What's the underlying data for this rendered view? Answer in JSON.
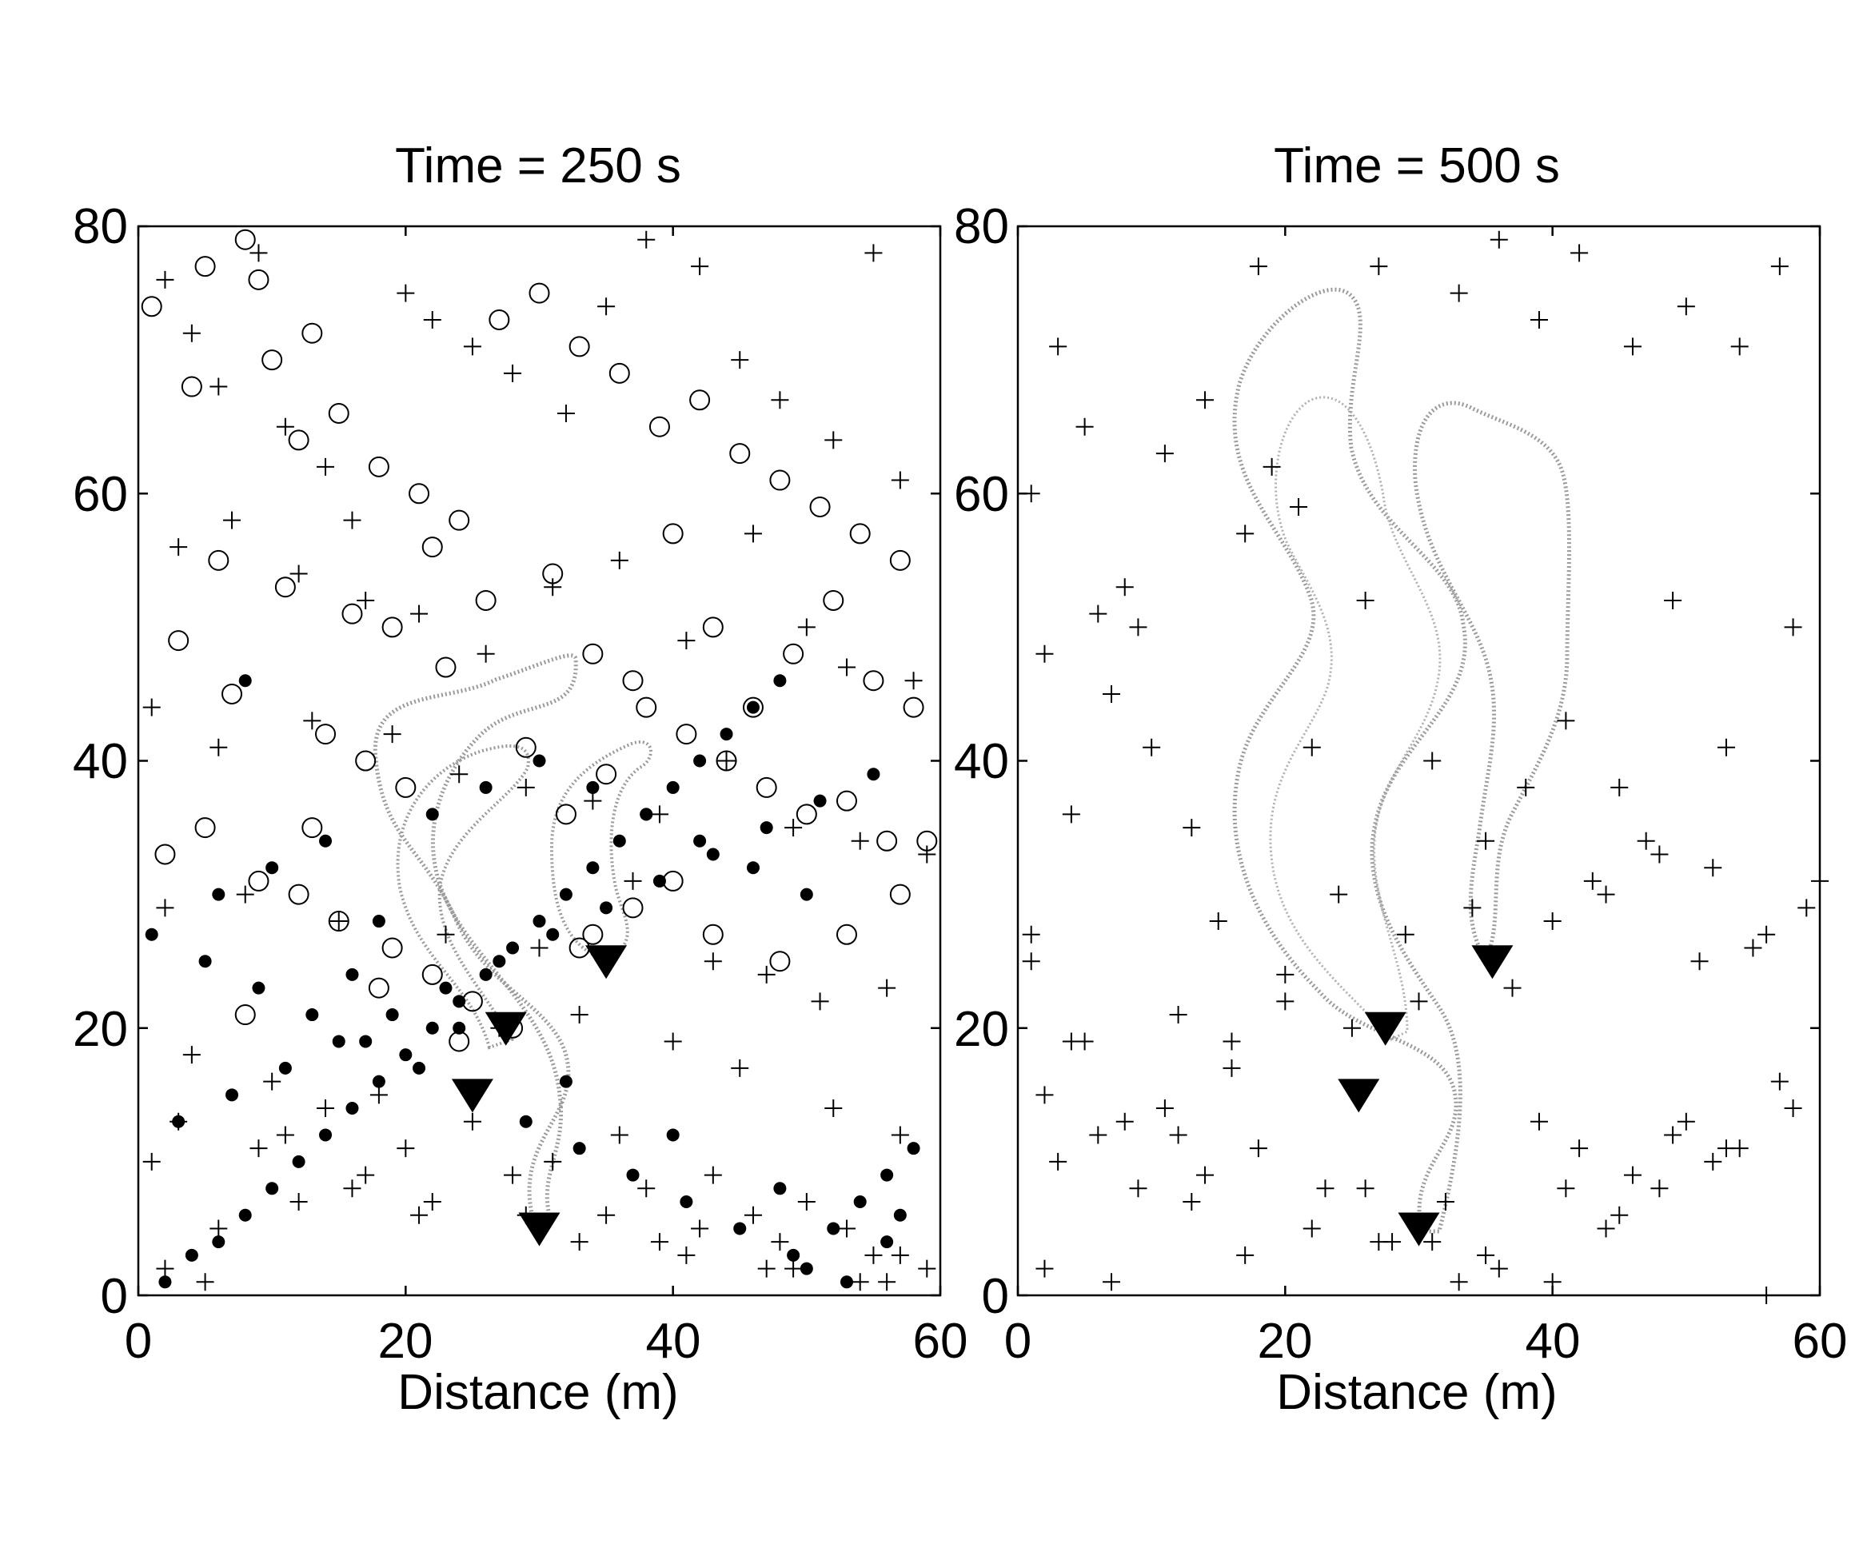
{
  "chart_data": [
    {
      "type": "scatter",
      "title": "Time = 250 s",
      "xlabel": "Distance (m)",
      "ylabel": "",
      "xlim": [
        0,
        60
      ],
      "ylim": [
        0,
        80
      ],
      "xticks": [
        "0",
        "20",
        "40",
        "60"
      ],
      "yticks": [
        "0",
        "20",
        "40",
        "60",
        "80"
      ],
      "grid": false,
      "legend": "none",
      "series": [
        {
          "marker": "plus",
          "color": "#000000",
          "x": [
            2,
            4,
            6,
            9,
            11,
            14,
            16,
            20,
            22,
            25,
            28,
            32,
            35,
            38,
            42,
            45,
            48,
            52,
            55,
            57,
            3,
            7,
            12,
            17,
            21,
            26,
            31,
            36,
            41,
            46,
            50,
            53,
            58,
            1,
            6,
            13,
            19,
            24,
            29,
            34,
            39,
            44,
            49,
            54,
            59,
            2,
            8,
            15,
            23,
            30,
            37,
            43,
            47,
            51,
            56,
            4,
            10,
            18,
            27,
            33,
            40,
            45,
            52,
            57,
            1,
            9,
            16,
            22,
            28,
            35,
            42,
            48,
            55,
            3,
            11,
            20,
            31,
            38,
            46,
            53,
            59,
            5,
            14,
            25,
            36,
            43,
            50,
            57,
            2,
            12,
            21,
            33,
            41,
            49,
            56,
            6,
            17,
            29,
            39,
            47,
            54
          ],
          "y": [
            76,
            72,
            68,
            78,
            65,
            62,
            58,
            75,
            73,
            71,
            69,
            66,
            74,
            79,
            77,
            70,
            67,
            64,
            78,
            61,
            56,
            58,
            54,
            52,
            51,
            48,
            53,
            55,
            49,
            57,
            50,
            47,
            46,
            44,
            41,
            43,
            42,
            39,
            38,
            37,
            36,
            40,
            35,
            34,
            33,
            29,
            30,
            28,
            27,
            26,
            31,
            25,
            24,
            22,
            23,
            18,
            16,
            15,
            20,
            21,
            19,
            17,
            14,
            12,
            10,
            11,
            8,
            7,
            9,
            6,
            5,
            4,
            3,
            13,
            12,
            11,
            10,
            8,
            6,
            5,
            2,
            1,
            14,
            13,
            12,
            9,
            7,
            3,
            2,
            7,
            6,
            4,
            3,
            2,
            1,
            5,
            9,
            6,
            4,
            2,
            1
          ]
        },
        {
          "marker": "open-circle",
          "color": "#000000",
          "x": [
            1,
            5,
            8,
            10,
            13,
            4,
            9,
            12,
            15,
            18,
            21,
            24,
            27,
            30,
            33,
            36,
            39,
            42,
            45,
            48,
            51,
            54,
            57,
            6,
            11,
            16,
            19,
            22,
            26,
            31,
            34,
            37,
            40,
            43,
            46,
            49,
            52,
            55,
            58,
            3,
            7,
            14,
            17,
            20,
            23,
            29,
            32,
            35,
            38,
            41,
            44,
            47,
            50,
            53,
            56,
            2,
            5,
            9,
            12,
            15,
            19,
            22,
            25,
            28,
            34,
            37,
            40,
            43,
            48,
            53,
            57,
            8,
            13,
            18,
            24,
            33,
            59
          ],
          "y": [
            74,
            77,
            79,
            70,
            72,
            68,
            76,
            64,
            66,
            62,
            60,
            58,
            73,
            75,
            71,
            69,
            65,
            67,
            63,
            61,
            59,
            57,
            55,
            55,
            53,
            51,
            50,
            56,
            52,
            54,
            48,
            46,
            57,
            50,
            44,
            48,
            52,
            46,
            44,
            49,
            45,
            42,
            40,
            38,
            47,
            41,
            36,
            39,
            44,
            42,
            40,
            38,
            36,
            37,
            34,
            33,
            35,
            31,
            30,
            28,
            26,
            24,
            22,
            20,
            27,
            29,
            31,
            27,
            25,
            27,
            30,
            21,
            35,
            23,
            19,
            26,
            34
          ]
        },
        {
          "marker": "filled-circle",
          "color": "#000000",
          "x": [
            2,
            4,
            6,
            8,
            10,
            12,
            14,
            16,
            18,
            20,
            22,
            24,
            26,
            28,
            30,
            32,
            34,
            36,
            38,
            40,
            42,
            44,
            46,
            48,
            50,
            52,
            54,
            56,
            58,
            3,
            7,
            11,
            15,
            19,
            23,
            27,
            31,
            35,
            39,
            43,
            47,
            51,
            55,
            1,
            5,
            9,
            13,
            17,
            21,
            25,
            29,
            33,
            37,
            41,
            45,
            49,
            53,
            57,
            6,
            10,
            14,
            18,
            22,
            26,
            30,
            34,
            38,
            42,
            46,
            50,
            8,
            16,
            24,
            32,
            40,
            48,
            56
          ],
          "y": [
            1,
            3,
            4,
            6,
            8,
            10,
            12,
            14,
            16,
            18,
            20,
            22,
            24,
            26,
            28,
            30,
            32,
            34,
            36,
            38,
            40,
            42,
            44,
            46,
            2,
            5,
            7,
            9,
            11,
            13,
            15,
            17,
            19,
            21,
            23,
            25,
            27,
            29,
            31,
            33,
            35,
            37,
            39,
            27,
            25,
            23,
            21,
            19,
            17,
            15,
            13,
            11,
            9,
            7,
            5,
            3,
            1,
            6,
            30,
            32,
            34,
            28,
            36,
            38,
            40,
            38,
            36,
            34,
            32,
            30,
            46,
            24,
            20,
            16,
            12,
            8,
            4
          ]
        },
        {
          "marker": "filled-triangle-down",
          "color": "#000000",
          "x": [
            25,
            27.5,
            30,
            35
          ],
          "y": [
            15,
            20,
            5,
            25
          ]
        }
      ]
    },
    {
      "type": "scatter",
      "title": "Time = 500 s",
      "xlabel": "Distance (m)",
      "ylabel": "",
      "xlim": [
        0,
        60
      ],
      "ylim": [
        0,
        80
      ],
      "xticks": [
        "0",
        "20",
        "40",
        "60"
      ],
      "yticks": [
        "0",
        "20",
        "40",
        "60",
        "80"
      ],
      "grid": false,
      "legend": "none",
      "series": [
        {
          "marker": "plus",
          "color": "#000000",
          "x": [
            1,
            3,
            5,
            8,
            11,
            14,
            18,
            22,
            27,
            33,
            36,
            39,
            42,
            46,
            50,
            54,
            57,
            2,
            6,
            9,
            13,
            17,
            21,
            26,
            31,
            35,
            41,
            45,
            49,
            53,
            58,
            1,
            4,
            7,
            10,
            15,
            19,
            24,
            29,
            34,
            38,
            43,
            47,
            51,
            56,
            60,
            2,
            5,
            8,
            12,
            16,
            20,
            25,
            30,
            37,
            40,
            44,
            48,
            52,
            55,
            59,
            3,
            6,
            11,
            14,
            18,
            23,
            28,
            32,
            39,
            42,
            46,
            50,
            54,
            57,
            1,
            4,
            9,
            13,
            17,
            22,
            27,
            33,
            36,
            41,
            45,
            49,
            53,
            56,
            2,
            7,
            12,
            16,
            20,
            26,
            31,
            35,
            40,
            44,
            48,
            52,
            58
          ],
          "y": [
            60,
            71,
            65,
            53,
            63,
            67,
            77,
            41,
            77,
            75,
            79,
            73,
            78,
            71,
            74,
            71,
            77,
            48,
            51,
            50,
            35,
            57,
            59,
            52,
            40,
            34,
            43,
            38,
            52,
            41,
            50,
            27,
            36,
            45,
            41,
            28,
            62,
            30,
            27,
            29,
            38,
            31,
            34,
            25,
            27,
            31,
            15,
            19,
            13,
            21,
            17,
            24,
            20,
            22,
            23,
            28,
            30,
            33,
            32,
            26,
            29,
            10,
            12,
            14,
            9,
            11,
            8,
            4,
            7,
            13,
            11,
            9,
            13,
            11,
            16,
            25,
            19,
            8,
            7,
            3,
            5,
            4,
            1,
            2,
            8,
            6,
            12,
            11,
            0,
            2,
            1,
            12,
            19,
            22,
            8,
            4,
            3,
            1,
            5,
            8,
            10,
            14
          ]
        },
        {
          "marker": "filled-triangle-down",
          "color": "#000000",
          "x": [
            25.5,
            27.5,
            30,
            35.5
          ],
          "y": [
            15,
            20,
            5,
            25
          ]
        }
      ]
    }
  ]
}
